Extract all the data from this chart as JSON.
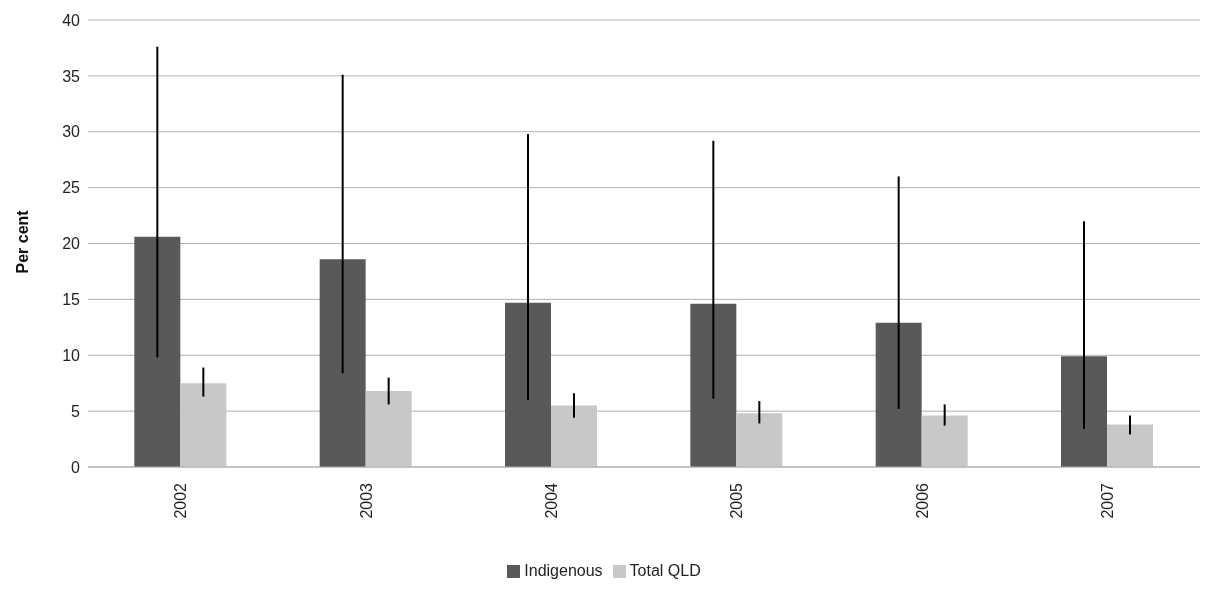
{
  "chart_data": {
    "type": "bar",
    "ylabel": "Per cent",
    "categories": [
      "2002",
      "2003",
      "2004",
      "2005",
      "2006",
      "2007"
    ],
    "series": [
      {
        "name": "Indigenous",
        "color": "#58595b",
        "values": [
          20.6,
          18.6,
          14.7,
          14.6,
          12.9,
          9.9
        ],
        "errors": [
          [
            9.8,
            37.6
          ],
          [
            8.4,
            35.1
          ],
          [
            6.0,
            29.8
          ],
          [
            6.1,
            29.2
          ],
          [
            5.2,
            26.0
          ],
          [
            3.4,
            22.0
          ]
        ]
      },
      {
        "name": "Total QLD",
        "color": "#c7c8ca",
        "values": [
          7.5,
          6.8,
          5.5,
          4.8,
          4.6,
          3.8
        ],
        "errors": [
          [
            6.3,
            8.9
          ],
          [
            5.6,
            8.0
          ],
          [
            4.4,
            6.6
          ],
          [
            3.9,
            5.9
          ],
          [
            3.7,
            5.6
          ],
          [
            2.9,
            4.6
          ]
        ]
      }
    ],
    "ylim": [
      0,
      40
    ],
    "yticks": [
      0,
      5,
      10,
      15,
      20,
      25,
      30,
      35,
      40
    ],
    "grid": "y",
    "legend": "bottom"
  }
}
